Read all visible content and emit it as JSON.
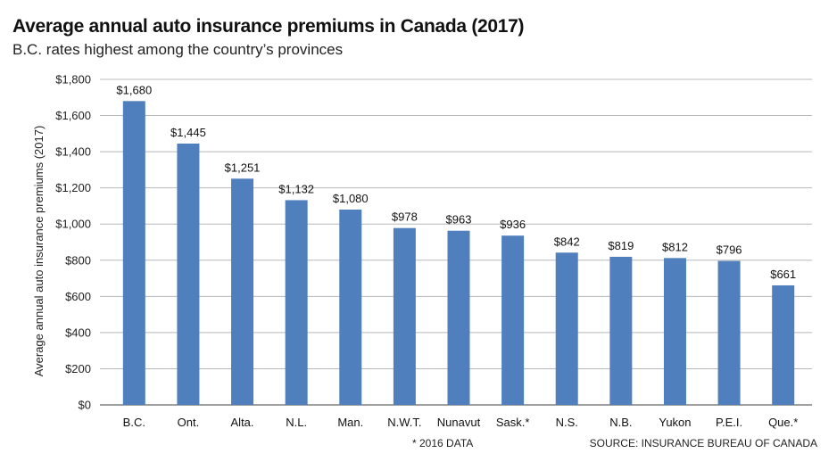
{
  "title": "Average annual auto insurance premiums in Canada (2017)",
  "subtitle": "B.C. rates highest among the country’s provinces",
  "footnote": "* 2016 DATA",
  "source": "SOURCE: INSURANCE BUREAU OF CANADA",
  "colors": {
    "bar": "#4f7fbd",
    "grid": "#b8b8b8",
    "axis": "#666666"
  },
  "chart_data": {
    "type": "bar",
    "categories": [
      "B.C.",
      "Ont.",
      "Alta.",
      "N.L.",
      "Man.",
      "N.W.T.",
      "Nunavut",
      "Sask.*",
      "N.S.",
      "N.B.",
      "Yukon",
      "P.E.I.",
      "Que.*"
    ],
    "values": [
      1680,
      1445,
      1251,
      1132,
      1080,
      978,
      963,
      936,
      842,
      819,
      812,
      796,
      661
    ],
    "data_labels": [
      "$1,680",
      "$1,445",
      "$1,251",
      "$1,132",
      "$1,080",
      "$978",
      "$963",
      "$936",
      "$842",
      "$819",
      "$812",
      "$796",
      "$661"
    ],
    "yticks": [
      0,
      200,
      400,
      600,
      800,
      1000,
      1200,
      1400,
      1600,
      1800
    ],
    "ytick_labels": [
      "$0",
      "$200",
      "$400",
      "$600",
      "$800",
      "$1,000",
      "$1,200",
      "$1,400",
      "$1,600",
      "$1,800"
    ],
    "ylabel": "Average annual auto insurance premiums (2017)",
    "xlabel": "",
    "ylim": [
      0,
      1800
    ],
    "grid": true,
    "legend": "none"
  }
}
